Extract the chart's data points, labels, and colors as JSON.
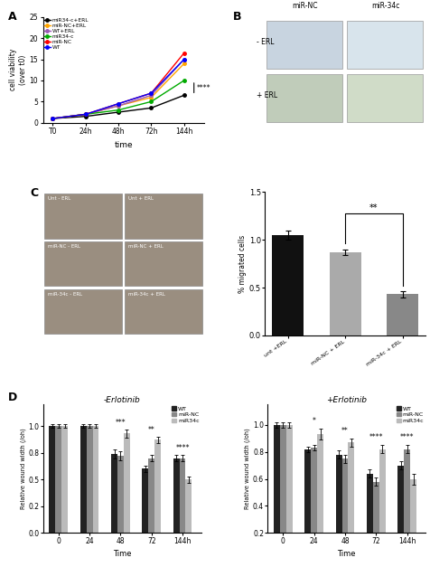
{
  "panel_A": {
    "xlabel": "time",
    "ylabel": "cell viability\n(over t0)",
    "x_labels": [
      "T0",
      "24h",
      "48h",
      "72h",
      "144h"
    ],
    "x_vals": [
      0,
      1,
      2,
      3,
      4
    ],
    "ylim": [
      0,
      25
    ],
    "yticks": [
      0,
      5,
      10,
      15,
      20,
      25
    ],
    "series": {
      "miR34-c+ERL": {
        "color": "#000000",
        "values": [
          1,
          1.5,
          2.5,
          3.5,
          6.5
        ],
        "marker": "o"
      },
      "miR-NC+ERL": {
        "color": "#FFA500",
        "values": [
          1,
          2.0,
          4.0,
          6.0,
          14.0
        ],
        "marker": "o"
      },
      "WT+ERL": {
        "color": "#9B59B6",
        "values": [
          1,
          2.0,
          4.0,
          6.5,
          15.0
        ],
        "marker": "o"
      },
      "miR34-c": {
        "color": "#00AA00",
        "values": [
          1,
          2.0,
          3.0,
          5.0,
          10.0
        ],
        "marker": "o"
      },
      "miR-NC": {
        "color": "#FF0000",
        "values": [
          1,
          2.0,
          4.5,
          7.0,
          16.5
        ],
        "marker": "o"
      },
      "WT": {
        "color": "#0000FF",
        "values": [
          1,
          2.0,
          4.5,
          7.0,
          15.0
        ],
        "marker": "o"
      }
    },
    "significance": "****"
  },
  "panel_B": {
    "col_labels": [
      "miR-NC",
      "miR-34c"
    ],
    "row_labels": [
      "- ERL",
      "+ ERL"
    ],
    "cell_colors": [
      [
        "#C8D4E0",
        "#D8E4EC"
      ],
      [
        "#C0CCBA",
        "#D0DCC8"
      ]
    ]
  },
  "panel_C_bar": {
    "ylabel": "% migrated cells",
    "categories": [
      "unt +ERL",
      "miR-NC + ERL",
      "miR-34c + ERL"
    ],
    "values": [
      1.05,
      0.87,
      0.43
    ],
    "errors": [
      0.05,
      0.03,
      0.03
    ],
    "colors": [
      "#111111",
      "#AAAAAA",
      "#888888"
    ],
    "ylim": [
      0,
      1.5
    ],
    "yticks": [
      0.0,
      0.5,
      1.0,
      1.5
    ],
    "significance": "**"
  },
  "panel_C_imgs": {
    "row_col_labels": [
      [
        "Unt - ERL",
        "Unt + ERL"
      ],
      [
        "miR-NC - ERL",
        "miR-NC + ERL"
      ],
      [
        "miR-34c - ERL",
        "miR-34c + ERL"
      ]
    ],
    "cell_color": "#9A8E80"
  },
  "panel_D_left": {
    "title": "-Erlotinib",
    "xlabel": "Time",
    "ylabel": "Relative wound width (/oh)",
    "x_labels": [
      "0",
      "24",
      "48",
      "72",
      "144h"
    ],
    "x_vals": [
      0,
      1,
      2,
      3,
      4
    ],
    "ylim": [
      0,
      1.2
    ],
    "yticks": [
      0.0,
      0.25,
      0.5,
      0.75,
      1.0
    ],
    "series": {
      "WT": {
        "color": "#222222",
        "values": [
          1.0,
          1.0,
          0.74,
          0.6,
          0.7
        ],
        "errors": [
          0.02,
          0.02,
          0.04,
          0.03,
          0.03
        ]
      },
      "miR-NC": {
        "color": "#888888",
        "values": [
          1.0,
          1.0,
          0.72,
          0.7,
          0.7
        ],
        "errors": [
          0.02,
          0.02,
          0.04,
          0.03,
          0.03
        ]
      },
      "miR34c": {
        "color": "#BBBBBB",
        "values": [
          1.0,
          1.0,
          0.93,
          0.87,
          0.5
        ],
        "errors": [
          0.02,
          0.02,
          0.04,
          0.03,
          0.03
        ]
      }
    },
    "sig_labels": {
      "2": "***",
      "3": "**",
      "4": "****"
    },
    "sig_xi": {
      "2": 2,
      "3": 3,
      "4": 4
    }
  },
  "panel_D_right": {
    "title": "+Erlotinib",
    "xlabel": "Time",
    "ylabel": "Relative wound width (/oh)",
    "x_labels": [
      "0",
      "24",
      "48",
      "72",
      "144h"
    ],
    "x_vals": [
      0,
      1,
      2,
      3,
      4
    ],
    "ylim": [
      0.2,
      1.15
    ],
    "yticks": [
      0.2,
      0.4,
      0.6,
      0.8,
      1.0
    ],
    "series": {
      "WT": {
        "color": "#222222",
        "values": [
          1.0,
          0.82,
          0.78,
          0.64,
          0.7
        ],
        "errors": [
          0.02,
          0.02,
          0.03,
          0.03,
          0.03
        ]
      },
      "miR-NC": {
        "color": "#888888",
        "values": [
          1.0,
          0.83,
          0.75,
          0.58,
          0.82
        ],
        "errors": [
          0.02,
          0.02,
          0.03,
          0.03,
          0.03
        ]
      },
      "miR34c": {
        "color": "#BBBBBB",
        "values": [
          1.0,
          0.93,
          0.87,
          0.82,
          0.6
        ],
        "errors": [
          0.02,
          0.04,
          0.03,
          0.03,
          0.04
        ]
      }
    },
    "sig_labels": {
      "1": "*",
      "2": "**",
      "3": "****",
      "4": "****"
    },
    "sig_xi": {
      "1": 1,
      "2": 2,
      "3": 3,
      "4": 4
    }
  },
  "bg_color": "#FFFFFF"
}
